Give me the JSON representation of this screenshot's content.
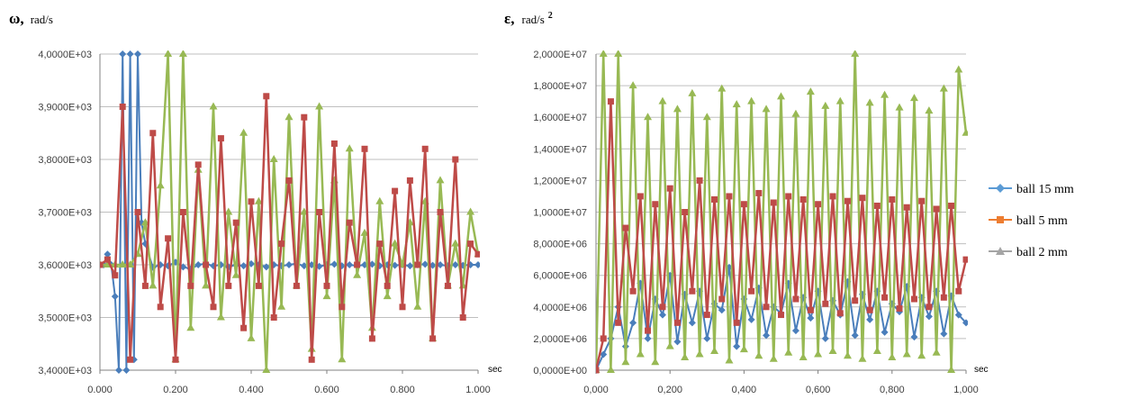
{
  "colors": {
    "s1": "#4a7ebb",
    "s2": "#be4b48",
    "s3": "#98b954",
    "grid": "#bfbfbf",
    "axis": "#808080"
  },
  "legend": {
    "items": [
      {
        "label": "ball 15 mm",
        "color": "#5b9bd5",
        "marker": "diamond"
      },
      {
        "label": "ball 5 mm",
        "color": "#ed7d31",
        "marker": "square"
      },
      {
        "label": "ball 2 mm",
        "color": "#a5a5a5",
        "marker": "triangle"
      }
    ]
  },
  "chart_data": [
    {
      "type": "line",
      "title_symbol": "ω,",
      "title_unit": "rad/s",
      "xlabel": "sec",
      "xlim": [
        0,
        1
      ],
      "ylim": [
        3400,
        4000
      ],
      "xticks": [
        "0.000",
        "0.200",
        "0.400",
        "0.600",
        "0.800",
        "1.000"
      ],
      "yticks": [
        "3,4000E+03",
        "3,5000E+03",
        "3,6000E+03",
        "3,7000E+03",
        "3,8000E+03",
        "3,9000E+03",
        "4,0000E+03"
      ],
      "series": [
        {
          "name": "ball 15 mm",
          "marker": "diamond",
          "x": [
            0.0,
            0.01,
            0.02,
            0.03,
            0.04,
            0.05,
            0.06,
            0.07,
            0.08,
            0.09,
            0.1,
            0.11,
            0.12,
            0.14,
            0.16,
            0.18,
            0.2,
            0.22,
            0.24,
            0.26,
            0.28,
            0.3,
            0.32,
            0.34,
            0.36,
            0.38,
            0.4,
            0.42,
            0.44,
            0.46,
            0.48,
            0.5,
            0.52,
            0.54,
            0.56,
            0.58,
            0.6,
            0.62,
            0.64,
            0.66,
            0.68,
            0.7,
            0.72,
            0.74,
            0.76,
            0.78,
            0.8,
            0.82,
            0.84,
            0.86,
            0.88,
            0.9,
            0.92,
            0.94,
            0.96,
            0.98,
            1.0
          ],
          "y": [
            3600,
            3600,
            3620,
            3600,
            3540,
            3400,
            4000,
            3400,
            4000,
            3420,
            4000,
            3680,
            3640,
            3595,
            3600,
            3598,
            3605,
            3596,
            3592,
            3600,
            3602,
            3598,
            3600,
            3596,
            3600,
            3598,
            3602,
            3600,
            3596,
            3600,
            3598,
            3600,
            3602,
            3598,
            3600,
            3597,
            3600,
            3601,
            3598,
            3600,
            3598,
            3600,
            3601,
            3598,
            3600,
            3599,
            3600,
            3598,
            3600,
            3601,
            3599,
            3600,
            3598,
            3600,
            3599,
            3600,
            3600
          ]
        },
        {
          "name": "ball 5 mm",
          "marker": "square",
          "x": [
            0.0,
            0.02,
            0.04,
            0.06,
            0.08,
            0.1,
            0.12,
            0.14,
            0.16,
            0.18,
            0.2,
            0.22,
            0.24,
            0.26,
            0.28,
            0.3,
            0.32,
            0.34,
            0.36,
            0.38,
            0.4,
            0.42,
            0.44,
            0.46,
            0.48,
            0.5,
            0.52,
            0.54,
            0.56,
            0.58,
            0.6,
            0.62,
            0.64,
            0.66,
            0.68,
            0.7,
            0.72,
            0.74,
            0.76,
            0.78,
            0.8,
            0.82,
            0.84,
            0.86,
            0.88,
            0.9,
            0.92,
            0.94,
            0.96,
            0.98,
            1.0
          ],
          "y": [
            3600,
            3610,
            3580,
            3900,
            3420,
            3700,
            3560,
            3850,
            3520,
            3650,
            3420,
            3700,
            3560,
            3790,
            3600,
            3520,
            3840,
            3560,
            3680,
            3480,
            3720,
            3560,
            3920,
            3500,
            3640,
            3760,
            3560,
            3880,
            3420,
            3700,
            3560,
            3830,
            3520,
            3680,
            3600,
            3820,
            3460,
            3640,
            3560,
            3740,
            3520,
            3760,
            3600,
            3820,
            3460,
            3700,
            3560,
            3800,
            3500,
            3640,
            3620
          ]
        },
        {
          "name": "ball 2 mm",
          "marker": "triangle",
          "x": [
            0.0,
            0.02,
            0.04,
            0.06,
            0.08,
            0.1,
            0.12,
            0.14,
            0.16,
            0.18,
            0.2,
            0.22,
            0.24,
            0.26,
            0.28,
            0.3,
            0.32,
            0.34,
            0.36,
            0.38,
            0.4,
            0.42,
            0.44,
            0.46,
            0.48,
            0.5,
            0.52,
            0.54,
            0.56,
            0.58,
            0.6,
            0.62,
            0.64,
            0.66,
            0.68,
            0.7,
            0.72,
            0.74,
            0.76,
            0.78,
            0.8,
            0.82,
            0.84,
            0.86,
            0.88,
            0.9,
            0.92,
            0.94,
            0.96,
            0.98,
            1.0
          ],
          "y": [
            3600,
            3600,
            3600,
            3600,
            3600,
            3620,
            3680,
            3560,
            3750,
            4000,
            3420,
            4000,
            3480,
            3780,
            3560,
            3900,
            3500,
            3700,
            3580,
            3850,
            3460,
            3720,
            3400,
            3800,
            3520,
            3880,
            3560,
            3700,
            3440,
            3900,
            3540,
            3760,
            3420,
            3820,
            3580,
            3660,
            3480,
            3720,
            3540,
            3640,
            3600,
            3680,
            3520,
            3720,
            3460,
            3760,
            3560,
            3640,
            3560,
            3700,
            3620
          ]
        }
      ]
    },
    {
      "type": "line",
      "title_symbol": "ε,",
      "title_unit": "rad/s",
      "title_power": "2",
      "xlabel": "sec",
      "xlim": [
        0,
        1
      ],
      "ylim": [
        0,
        20000000
      ],
      "xticks": [
        "0,000",
        "0,200",
        "0,400",
        "0,600",
        "0,800",
        "1,000"
      ],
      "yticks": [
        "0,0000E+00",
        "2,0000E+06",
        "4,0000E+06",
        "6,0000E+06",
        "8,0000E+06",
        "1,0000E+07",
        "1,2000E+07",
        "1,4000E+07",
        "1,6000E+07",
        "1,8000E+07",
        "2,0000E+07"
      ],
      "series": [
        {
          "name": "ball 15 mm",
          "marker": "diamond",
          "x": [
            0.0,
            0.02,
            0.04,
            0.06,
            0.08,
            0.1,
            0.12,
            0.14,
            0.16,
            0.18,
            0.2,
            0.22,
            0.24,
            0.26,
            0.28,
            0.3,
            0.32,
            0.34,
            0.36,
            0.38,
            0.4,
            0.42,
            0.44,
            0.46,
            0.48,
            0.5,
            0.52,
            0.54,
            0.56,
            0.58,
            0.6,
            0.62,
            0.64,
            0.66,
            0.68,
            0.7,
            0.72,
            0.74,
            0.76,
            0.78,
            0.8,
            0.82,
            0.84,
            0.86,
            0.88,
            0.9,
            0.92,
            0.94,
            0.96,
            0.98,
            1.0
          ],
          "y": [
            0,
            1000000,
            2000000,
            4000000,
            1500000,
            3000000,
            5500000,
            2000000,
            4500000,
            3500000,
            6000000,
            1800000,
            4800000,
            3000000,
            5000000,
            2000000,
            4200000,
            3800000,
            6500000,
            1500000,
            4500000,
            3200000,
            5200000,
            2200000,
            4000000,
            3600000,
            5500000,
            2500000,
            4600000,
            3300000,
            5000000,
            2000000,
            4400000,
            3500000,
            5600000,
            2200000,
            4800000,
            3200000,
            5000000,
            2400000,
            4200000,
            3700000,
            5300000,
            2100000,
            4600000,
            3400000,
            5000000,
            2300000,
            4700000,
            3500000,
            3000000
          ]
        },
        {
          "name": "ball 5 mm",
          "marker": "square",
          "x": [
            0.0,
            0.02,
            0.04,
            0.06,
            0.08,
            0.1,
            0.12,
            0.14,
            0.16,
            0.18,
            0.2,
            0.22,
            0.24,
            0.26,
            0.28,
            0.3,
            0.32,
            0.34,
            0.36,
            0.38,
            0.4,
            0.42,
            0.44,
            0.46,
            0.48,
            0.5,
            0.52,
            0.54,
            0.56,
            0.58,
            0.6,
            0.62,
            0.64,
            0.66,
            0.68,
            0.7,
            0.72,
            0.74,
            0.76,
            0.78,
            0.8,
            0.82,
            0.84,
            0.86,
            0.88,
            0.9,
            0.92,
            0.94,
            0.96,
            0.98,
            1.0
          ],
          "y": [
            0,
            2000000,
            17000000,
            3000000,
            9000000,
            5000000,
            11000000,
            2500000,
            10500000,
            4000000,
            11500000,
            3000000,
            10000000,
            5000000,
            12000000,
            3500000,
            10800000,
            4500000,
            11000000,
            3000000,
            10500000,
            5000000,
            11200000,
            4000000,
            10600000,
            3500000,
            11000000,
            4500000,
            10800000,
            3800000,
            10500000,
            4200000,
            11000000,
            3600000,
            10700000,
            4400000,
            10900000,
            3800000,
            10400000,
            4600000,
            10800000,
            3900000,
            10300000,
            4500000,
            10700000,
            4000000,
            10200000,
            4600000,
            10400000,
            5000000,
            7000000
          ]
        },
        {
          "name": "ball 2 mm",
          "marker": "triangle",
          "x": [
            0.0,
            0.02,
            0.04,
            0.06,
            0.08,
            0.1,
            0.12,
            0.14,
            0.16,
            0.18,
            0.2,
            0.22,
            0.24,
            0.26,
            0.28,
            0.3,
            0.32,
            0.34,
            0.36,
            0.38,
            0.4,
            0.42,
            0.44,
            0.46,
            0.48,
            0.5,
            0.52,
            0.54,
            0.56,
            0.58,
            0.6,
            0.62,
            0.64,
            0.66,
            0.68,
            0.7,
            0.72,
            0.74,
            0.76,
            0.78,
            0.8,
            0.82,
            0.84,
            0.86,
            0.88,
            0.9,
            0.92,
            0.94,
            0.96,
            0.98,
            1.0
          ],
          "y": [
            0,
            20000000,
            0,
            20000000,
            500000,
            18000000,
            1000000,
            16000000,
            500000,
            17000000,
            1500000,
            16500000,
            800000,
            17500000,
            1000000,
            16000000,
            1200000,
            17800000,
            600000,
            16800000,
            1300000,
            17000000,
            900000,
            16500000,
            700000,
            17300000,
            1100000,
            16200000,
            800000,
            17600000,
            1000000,
            16700000,
            1200000,
            17000000,
            900000,
            20000000,
            700000,
            16900000,
            1200000,
            17400000,
            800000,
            16600000,
            1000000,
            17200000,
            900000,
            16400000,
            1100000,
            17800000,
            0,
            19000000,
            15000000
          ]
        }
      ]
    }
  ]
}
